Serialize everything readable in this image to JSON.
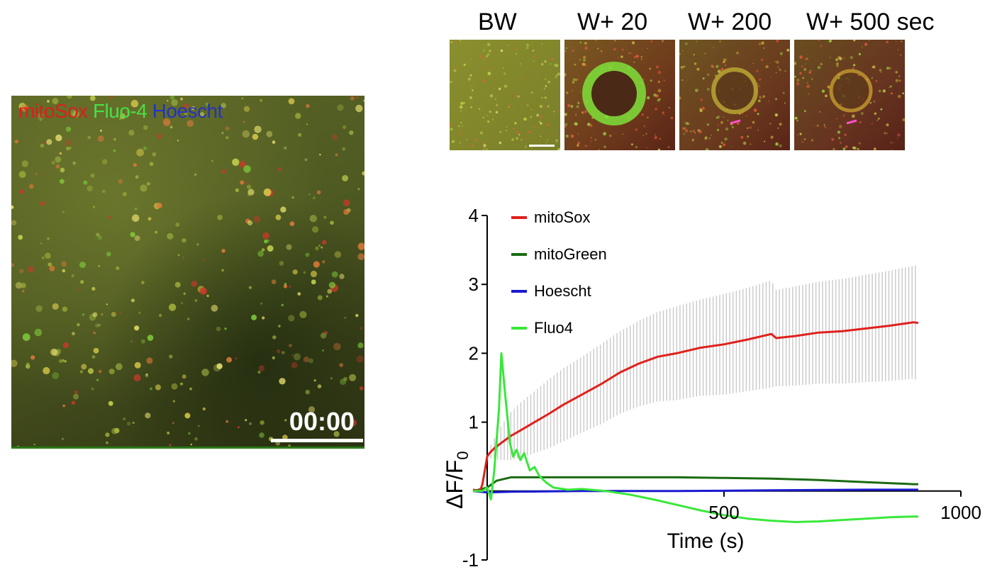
{
  "micrograph": {
    "legend": {
      "red": "mitoSox",
      "green": "Fluo-4",
      "blue": "Hoescht"
    },
    "timestamp": "00:00",
    "colors": {
      "red": "#d8201c",
      "green": "#46e04a",
      "blue": "#2433c0"
    }
  },
  "panels": [
    {
      "label": "BW"
    },
    {
      "label": "W+ 20"
    },
    {
      "label": "W+ 200"
    },
    {
      "label": "W+ 500 sec"
    }
  ],
  "chart_data": {
    "type": "line",
    "title": "",
    "xlabel": "Time (s)",
    "ylabel_main": "ΔF/F",
    "ylabel_sub": "0",
    "xlim": [
      0,
      1000
    ],
    "ylim": [
      -1,
      4
    ],
    "xticks": [
      500,
      1000
    ],
    "yticks": [
      -1,
      1,
      2,
      3,
      4
    ],
    "legend_position": "top-left",
    "series": [
      {
        "name": "mitoSox",
        "color": "#e0201c",
        "x": [
          -30,
          -15,
          -10,
          0,
          5,
          15,
          30,
          50,
          70,
          100,
          130,
          160,
          200,
          240,
          280,
          320,
          360,
          400,
          450,
          500,
          550,
          600,
          610,
          650,
          700,
          750,
          800,
          850,
          900,
          910
        ],
        "y": [
          0.02,
          0.0,
          0.1,
          0.5,
          0.55,
          0.62,
          0.7,
          0.8,
          0.88,
          1.0,
          1.12,
          1.25,
          1.4,
          1.55,
          1.72,
          1.85,
          1.95,
          2.0,
          2.08,
          2.13,
          2.2,
          2.28,
          2.22,
          2.25,
          2.3,
          2.32,
          2.36,
          2.4,
          2.45,
          2.44
        ],
        "err": [
          0,
          0,
          0,
          0,
          0.08,
          0.15,
          0.25,
          0.35,
          0.4,
          0.45,
          0.5,
          0.53,
          0.55,
          0.58,
          0.6,
          0.62,
          0.65,
          0.68,
          0.7,
          0.73,
          0.75,
          0.78,
          0.7,
          0.72,
          0.74,
          0.76,
          0.78,
          0.8,
          0.82,
          0.84
        ]
      },
      {
        "name": "mitoGreen",
        "color": "#1a6b12",
        "x": [
          -30,
          0,
          20,
          50,
          100,
          200,
          300,
          400,
          500,
          600,
          700,
          800,
          900,
          910
        ],
        "y": [
          0.0,
          0.05,
          0.15,
          0.2,
          0.2,
          0.2,
          0.2,
          0.2,
          0.19,
          0.18,
          0.16,
          0.13,
          0.1,
          0.1
        ]
      },
      {
        "name": "Hoescht",
        "color": "#1a1ad0",
        "x": [
          -30,
          0,
          50,
          200,
          400,
          600,
          800,
          910
        ],
        "y": [
          0.0,
          -0.02,
          -0.01,
          0.0,
          0.0,
          0.01,
          0.02,
          0.02
        ]
      },
      {
        "name": "Fluo4",
        "color": "#39e83a",
        "x": [
          -30,
          -10,
          0,
          8,
          15,
          25,
          30,
          38,
          48,
          55,
          62,
          70,
          78,
          90,
          100,
          110,
          125,
          140,
          170,
          200,
          250,
          300,
          350,
          400,
          450,
          500,
          550,
          600,
          650,
          700,
          750,
          800,
          850,
          900,
          910
        ],
        "y": [
          0.0,
          0.0,
          0.05,
          -0.12,
          0.3,
          1.2,
          2.0,
          1.4,
          0.7,
          0.5,
          0.6,
          0.45,
          0.55,
          0.3,
          0.35,
          0.22,
          0.12,
          0.05,
          0.02,
          0.03,
          0.0,
          -0.05,
          -0.12,
          -0.2,
          -0.28,
          -0.35,
          -0.4,
          -0.43,
          -0.45,
          -0.44,
          -0.42,
          -0.4,
          -0.38,
          -0.37,
          -0.37
        ]
      }
    ]
  }
}
